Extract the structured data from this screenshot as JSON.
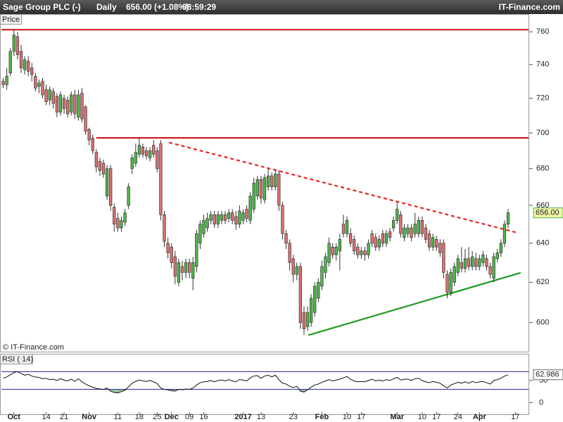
{
  "chart_data": {
    "type": "candlestick",
    "title": "Sage Group PLC (-)",
    "period": "Daily",
    "quote": "656.00 (+1.08%)",
    "time": "08:59:29",
    "source": "IT-Finance.com",
    "y_label": "Price",
    "copyright": "© IT-Finance.com",
    "log": true,
    "ylim": [
      586,
      764
    ],
    "yticks": [
      600,
      620,
      640,
      660,
      680,
      700,
      720,
      740,
      760
    ],
    "xlim": [
      -0.5,
      146.5
    ],
    "xticks": [
      {
        "value": 3,
        "label": "Oct"
      },
      {
        "value": 12,
        "label": "14"
      },
      {
        "value": 17,
        "label": "21"
      },
      {
        "value": 24,
        "label": "Nov"
      },
      {
        "value": 32,
        "label": "11"
      },
      {
        "value": 38,
        "label": "18"
      },
      {
        "value": 43,
        "label": "25"
      },
      {
        "value": 47,
        "label": "Dec"
      },
      {
        "value": 52,
        "label": "09"
      },
      {
        "value": 56,
        "label": "16"
      },
      {
        "value": 67,
        "label": "2017"
      },
      {
        "value": 72,
        "label": "13"
      },
      {
        "value": 81,
        "label": "23"
      },
      {
        "value": 89,
        "label": "Feb"
      },
      {
        "value": 96,
        "label": "10"
      },
      {
        "value": 100,
        "label": "17"
      },
      {
        "value": 110,
        "label": "Mar"
      },
      {
        "value": 117,
        "label": "10"
      },
      {
        "value": 121,
        "label": "17"
      },
      {
        "value": 127,
        "label": "24"
      },
      {
        "value": 133,
        "label": "Apr"
      },
      {
        "value": 143,
        "label": "17"
      }
    ],
    "up_color": "#4cb848",
    "down_color": "#de7070",
    "open": [
      730,
      728,
      735,
      748,
      757,
      748,
      737,
      742,
      738,
      733,
      727,
      730,
      725,
      719,
      724,
      721,
      712,
      720,
      719,
      712,
      722,
      709,
      723,
      715,
      702,
      697,
      689,
      684,
      683,
      665,
      680,
      659,
      653,
      648,
      651,
      660,
      680,
      683,
      688,
      692,
      690,
      686,
      693,
      690,
      694,
      655,
      640,
      638,
      633,
      620,
      628,
      625,
      630,
      622,
      628,
      640,
      645,
      648,
      652,
      655,
      650,
      652,
      655,
      653,
      656,
      654,
      650,
      652,
      658,
      652,
      658,
      665,
      674,
      663,
      670,
      676,
      670,
      677,
      660,
      645,
      640,
      632,
      624,
      628,
      605,
      598,
      600,
      605,
      612,
      618,
      625,
      630,
      638,
      634,
      636,
      650,
      645,
      645,
      642,
      638,
      634,
      636,
      634,
      645,
      643,
      638,
      645,
      640,
      646,
      648,
      652,
      655,
      643,
      645,
      648,
      645,
      645,
      652,
      648,
      645,
      638,
      642,
      640,
      640,
      624,
      615,
      620,
      625,
      630,
      627,
      632,
      628,
      632,
      628,
      630,
      632,
      628,
      622,
      632,
      635,
      640,
      650
    ],
    "high": [
      732,
      738,
      750,
      761,
      760,
      752,
      745,
      745,
      741,
      735,
      731,
      732,
      728,
      727,
      726,
      723,
      724,
      722,
      721,
      724,
      725,
      725,
      726,
      716,
      703,
      699,
      691,
      686,
      685,
      682,
      682,
      661,
      656,
      654,
      658,
      672,
      688,
      694,
      697,
      694,
      692,
      692,
      696,
      692,
      696,
      657,
      643,
      640,
      636,
      632,
      631,
      632,
      632,
      633,
      647,
      652,
      655,
      656,
      657,
      657,
      657,
      657,
      657,
      658,
      658,
      657,
      660,
      658,
      660,
      667,
      675,
      676,
      676,
      677,
      680,
      678,
      679,
      679,
      662,
      647,
      642,
      634,
      630,
      630,
      608,
      608,
      614,
      620,
      622,
      631,
      635,
      643,
      640,
      640,
      645,
      655,
      654,
      648,
      644,
      640,
      638,
      638,
      642,
      647,
      645,
      644,
      647,
      647,
      648,
      654,
      662,
      657,
      650,
      650,
      650,
      656,
      654,
      654,
      650,
      647,
      645,
      644,
      642,
      642,
      626,
      627,
      630,
      634,
      638,
      637,
      638,
      636,
      635,
      634,
      636,
      634,
      630,
      635,
      637,
      642,
      652,
      658
    ],
    "low": [
      726,
      725,
      733,
      745,
      743,
      735,
      734,
      733,
      730,
      724,
      723,
      720,
      716,
      716,
      714,
      709,
      710,
      711,
      709,
      710,
      708,
      707,
      706,
      699,
      693,
      688,
      678,
      676,
      675,
      663,
      657,
      646,
      646,
      646,
      649,
      658,
      677,
      681,
      686,
      686,
      685,
      684,
      686,
      678,
      652,
      638,
      632,
      627,
      619,
      618,
      621,
      622,
      622,
      616,
      625,
      637,
      643,
      646,
      650,
      648,
      648,
      650,
      650,
      651,
      650,
      647,
      648,
      650,
      651,
      650,
      656,
      663,
      661,
      661,
      668,
      668,
      668,
      657,
      642,
      637,
      626,
      620,
      621,
      597,
      594,
      596,
      598,
      603,
      610,
      616,
      622,
      628,
      632,
      631,
      626,
      643,
      643,
      638,
      634,
      632,
      632,
      631,
      632,
      638,
      636,
      636,
      638,
      638,
      641,
      646,
      650,
      643,
      641,
      643,
      641,
      643,
      643,
      643,
      640,
      636,
      636,
      636,
      633,
      622,
      612,
      613,
      618,
      623,
      625,
      625,
      626,
      626,
      626,
      626,
      628,
      626,
      622,
      620,
      630,
      633,
      638,
      648
    ],
    "close": [
      728,
      733,
      748,
      758,
      746,
      738,
      743,
      736,
      734,
      726,
      729,
      722,
      718,
      725,
      717,
      712,
      722,
      714,
      711,
      722,
      711,
      722,
      708,
      701,
      696,
      690,
      681,
      679,
      677,
      680,
      660,
      650,
      648,
      652,
      656,
      670,
      686,
      689,
      693,
      688,
      687,
      690,
      688,
      680,
      655,
      641,
      635,
      630,
      623,
      630,
      625,
      630,
      625,
      630,
      645,
      650,
      652,
      653,
      655,
      650,
      655,
      655,
      652,
      656,
      652,
      650,
      657,
      656,
      653,
      665,
      672,
      674,
      664,
      675,
      676,
      670,
      677,
      660,
      645,
      640,
      630,
      624,
      628,
      600,
      597,
      605,
      612,
      618,
      620,
      628,
      633,
      640,
      634,
      638,
      642,
      645,
      652,
      640,
      636,
      634,
      636,
      634,
      640,
      640,
      638,
      642,
      640,
      645,
      643,
      652,
      658,
      645,
      648,
      648,
      643,
      650,
      652,
      645,
      642,
      638,
      643,
      638,
      635,
      625,
      615,
      625,
      628,
      632,
      627,
      632,
      628,
      633,
      628,
      632,
      634,
      628,
      624,
      633,
      635,
      640,
      650,
      656
    ],
    "hlines": [
      {
        "y": 761.3,
        "x_start": -0.5,
        "color": "#cc1010"
      },
      {
        "y": 697.2,
        "x_start": 26,
        "color": "#cc1010"
      }
    ],
    "trendlines": [
      {
        "x": [
          46.3,
          143.5
        ],
        "y": [
          694.6,
          645.5
        ],
        "color": "#e8231f",
        "dashed": true
      },
      {
        "x": [
          85.2,
          144.5
        ],
        "y": [
          593.9,
          624.8
        ],
        "color": "#1e9a1e",
        "dashed": false
      }
    ],
    "last_price": {
      "value": 656,
      "label": "656.00"
    },
    "indicator": {
      "type": "line",
      "title": "RSI ( 14)",
      "color": "#111111",
      "level_color": "#20209a",
      "fill_color": "#9cc79c",
      "ylim": [
        -26,
        107
      ],
      "yticks": [
        0,
        50
      ],
      "levels": [
        30,
        70
      ],
      "values": [
        55,
        58,
        63,
        68,
        70,
        66,
        62,
        64,
        60,
        58,
        57,
        54,
        55,
        52,
        53,
        50,
        54,
        51,
        49,
        53,
        48,
        54,
        47,
        42,
        38,
        35,
        32,
        31,
        30,
        33,
        26,
        23,
        22,
        25,
        28,
        36,
        44,
        48,
        51,
        49,
        48,
        50,
        47,
        43,
        33,
        30,
        29,
        27,
        26,
        30,
        29,
        31,
        30,
        33,
        40,
        45,
        47,
        48,
        50,
        47,
        50,
        51,
        49,
        52,
        49,
        47,
        52,
        51,
        49,
        56,
        60,
        61,
        55,
        60,
        62,
        58,
        62,
        52,
        44,
        42,
        37,
        34,
        37,
        26,
        24,
        29,
        35,
        40,
        42,
        46,
        49,
        52,
        49,
        51,
        53,
        56,
        59,
        53,
        49,
        47,
        48,
        47,
        50,
        53,
        49,
        51,
        49,
        52,
        50,
        54,
        57,
        51,
        53,
        53,
        50,
        54,
        55,
        50,
        47,
        45,
        48,
        46,
        44,
        38,
        33,
        40,
        43,
        46,
        44,
        47,
        44,
        48,
        45,
        47,
        48,
        45,
        42,
        50,
        52,
        55,
        60,
        62.986
      ]
    }
  }
}
